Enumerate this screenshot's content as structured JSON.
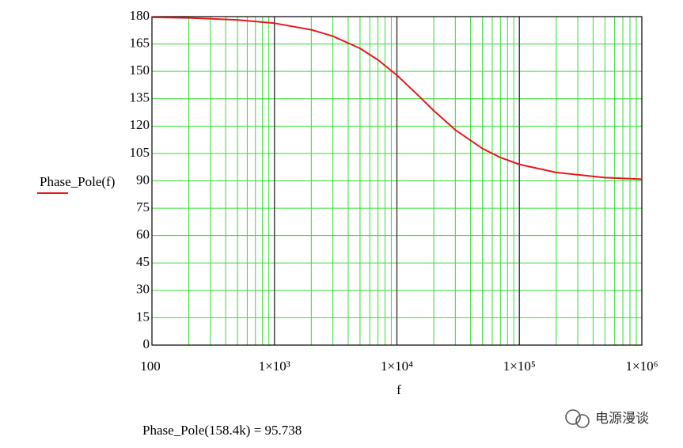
{
  "chart_data": {
    "type": "line",
    "x_label": "f",
    "annotation": "Phase_Pole(158.4k) = 95.738",
    "watermark": "电源漫谈",
    "log_x": true,
    "grid": true,
    "minor_grid": true,
    "grid_color": "#33dd33",
    "major_grid_color": "#444444",
    "x": [
      100,
      200,
      500,
      1000,
      2000,
      3000,
      5000,
      7000,
      10000,
      15000,
      20000,
      30000,
      50000,
      70000,
      100000,
      200000,
      500000,
      1000000
    ],
    "series": [
      {
        "name": "Phase_Pole(f)",
        "color": "#e8171c",
        "values": [
          179.6,
          179.3,
          178.2,
          176.4,
          172.8,
          169.3,
          162.6,
          156.3,
          147.9,
          136.7,
          128.5,
          117.9,
          107.7,
          102.8,
          99.0,
          94.6,
          91.8,
          90.9
        ]
      }
    ],
    "xlim": [
      100,
      1000000
    ],
    "xticks": [
      100,
      {
        "value": 1000,
        "label": "1×10³"
      },
      {
        "value": 10000,
        "label": "1×10⁴"
      },
      {
        "value": 100000,
        "label": "1×10⁵"
      },
      {
        "value": 1000000,
        "label": "1×10⁶"
      }
    ],
    "ylim": [
      0,
      180
    ],
    "yticks": [
      0,
      15,
      30,
      45,
      60,
      75,
      90,
      105,
      120,
      135,
      150,
      165,
      180
    ]
  }
}
